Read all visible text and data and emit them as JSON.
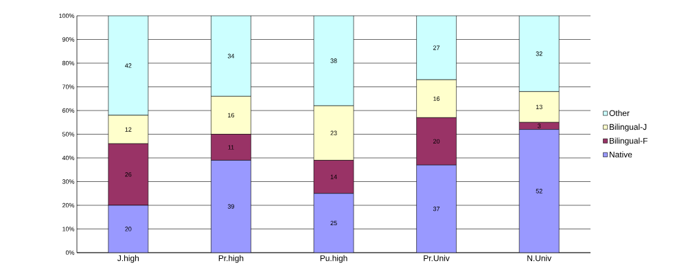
{
  "chart_data": {
    "type": "bar",
    "stacked": true,
    "categories": [
      "J.high",
      "Pr.high",
      "Pu.high",
      "Pr.Univ",
      "N.Univ"
    ],
    "series": [
      {
        "name": "Native",
        "color": "#9999ff",
        "values": [
          20,
          39,
          25,
          37,
          52
        ]
      },
      {
        "name": "Bilingual-F",
        "color": "#993366",
        "values": [
          26,
          11,
          14,
          20,
          3
        ]
      },
      {
        "name": "Bilingual-J",
        "color": "#ffffcc",
        "values": [
          12,
          16,
          23,
          16,
          13
        ]
      },
      {
        "name": "Other",
        "color": "#ccffff",
        "values": [
          42,
          34,
          38,
          27,
          32
        ]
      }
    ],
    "ylim": [
      0,
      100
    ],
    "yticks": [
      {
        "value": 0,
        "label": "0%"
      },
      {
        "value": 10,
        "label": "10%"
      },
      {
        "value": 20,
        "label": "20%"
      },
      {
        "value": 30,
        "label": "30%"
      },
      {
        "value": 40,
        "label": "40%"
      },
      {
        "value": 50,
        "label": "50%"
      },
      {
        "value": 60,
        "label": "60%"
      },
      {
        "value": 70,
        "label": "70%"
      },
      {
        "value": 80,
        "label": "80%"
      },
      {
        "value": 90,
        "label": "90%"
      },
      {
        "value": 100,
        "label": "100%"
      }
    ],
    "grid": "y",
    "legend": "right",
    "data_labels": true
  }
}
